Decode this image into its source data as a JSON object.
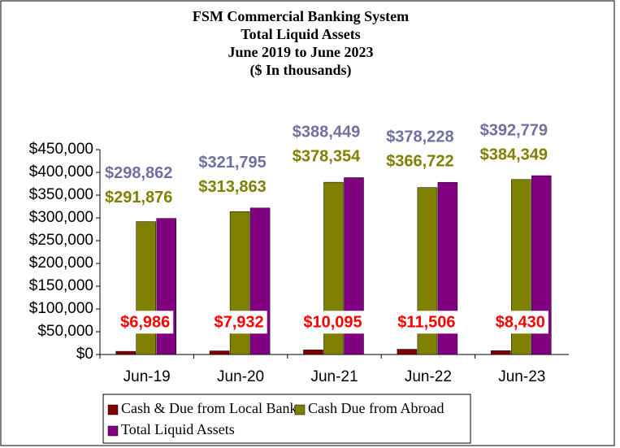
{
  "chart_data": {
    "type": "bar",
    "title": [
      "FSM Commercial Banking System",
      "Total Liquid Assets",
      "June 2019 to June 2023",
      "($ In thousands)"
    ],
    "categories": [
      "Jun-19",
      "Jun-20",
      "Jun-21",
      "Jun-22",
      "Jun-23"
    ],
    "series": [
      {
        "name": "Cash & Due from Local Banks",
        "color": "#800000",
        "label_color": "#ff0000",
        "values": [
          6986,
          7932,
          10095,
          11506,
          8430
        ],
        "value_labels": [
          "$6,986",
          "$7,932",
          "$10,095",
          "$11,506",
          "$8,430"
        ]
      },
      {
        "name": "Cash Due from Abroad",
        "color": "#808000",
        "label_color": "#808000",
        "values": [
          291876,
          313863,
          378354,
          366722,
          384349
        ],
        "value_labels": [
          "$291,876",
          "$313,863",
          "$378,354",
          "$366,722",
          "$384,349"
        ]
      },
      {
        "name": "Total Liquid Assets",
        "color": "#800080",
        "label_color": "#7070a0",
        "values": [
          298862,
          321795,
          388449,
          378228,
          392779
        ],
        "value_labels": [
          "$298,862",
          "$321,795",
          "$388,449",
          "$378,228",
          "$392,779"
        ]
      }
    ],
    "ylim": [
      0,
      450000
    ],
    "yticks": [
      {
        "value": 0,
        "label": "$0"
      },
      {
        "value": 50000,
        "label": "$50,000"
      },
      {
        "value": 100000,
        "label": "$100,000"
      },
      {
        "value": 150000,
        "label": "$150,000"
      },
      {
        "value": 200000,
        "label": "$200,000"
      },
      {
        "value": 250000,
        "label": "$250,000"
      },
      {
        "value": 300000,
        "label": "$300,000"
      },
      {
        "value": 350000,
        "label": "$350,000"
      },
      {
        "value": 400000,
        "label": "$400,000"
      },
      {
        "value": 450000,
        "label": "$450,000"
      }
    ],
    "grid": false,
    "legend": "bottom"
  }
}
